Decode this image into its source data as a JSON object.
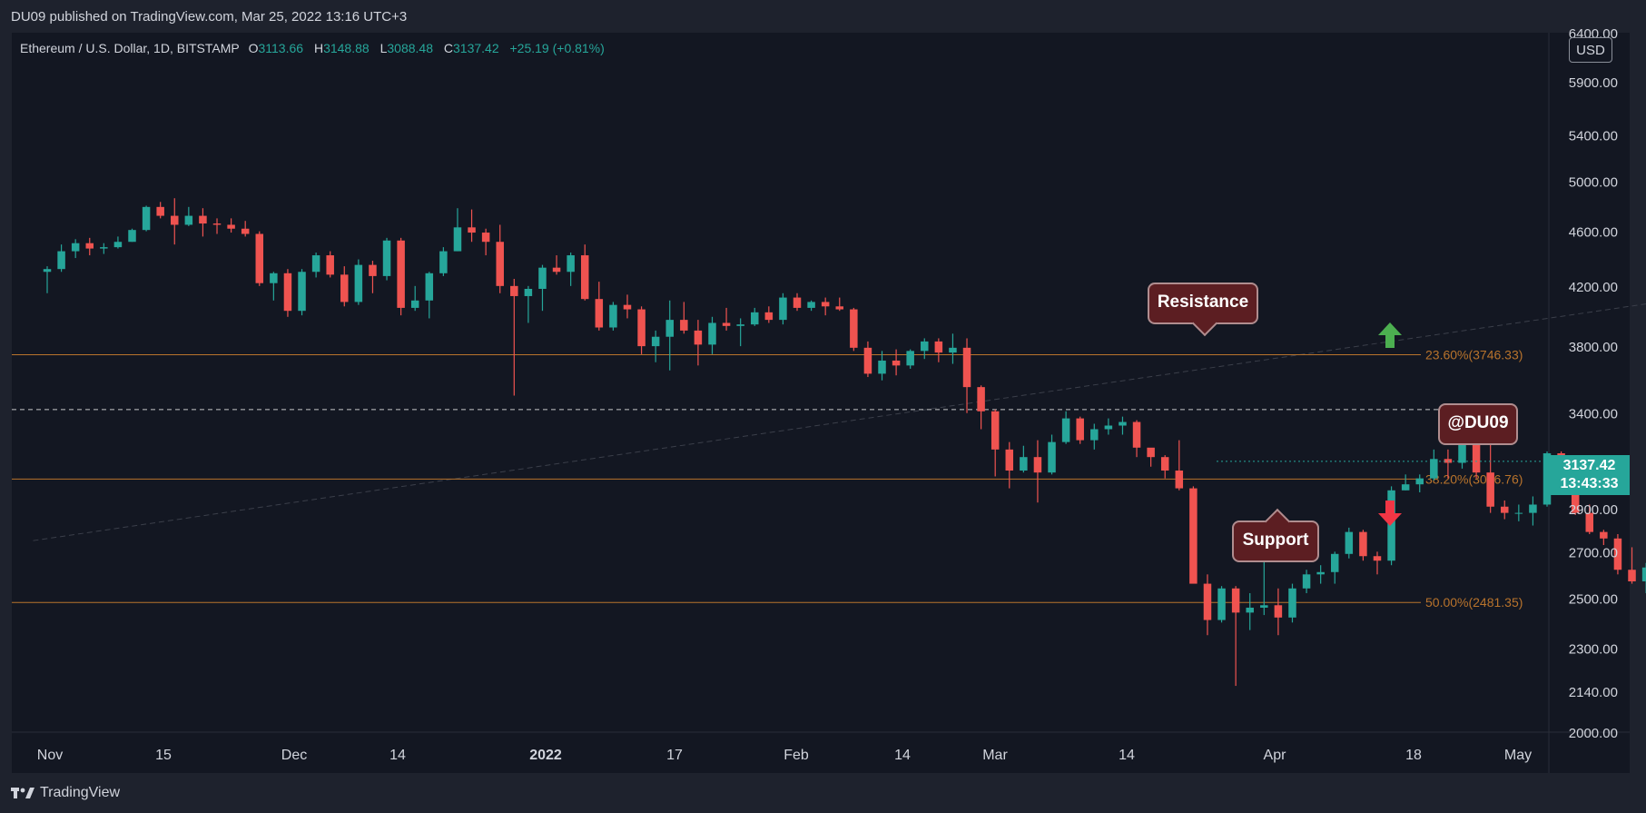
{
  "header": {
    "published": "DU09 published on TradingView.com, Mar 25, 2022 13:16 UTC+3"
  },
  "legend": {
    "symbol": "Ethereum / U.S. Dollar, 1D, BITSTAMP",
    "o_label": "O",
    "o": "3113.66",
    "h_label": "H",
    "h": "3148.88",
    "l_label": "L",
    "l": "3088.48",
    "c_label": "C",
    "c": "3137.42",
    "change": "+25.19 (+0.81%)"
  },
  "callouts": {
    "resistance": "Resistance",
    "support": "Support",
    "watermark": "@DU09"
  },
  "last_price": {
    "price": "3137.42",
    "countdown": "13:43:33"
  },
  "currency": "USD",
  "brand": "TradingView",
  "colors": {
    "up": "#26a69a",
    "down": "#ef5350",
    "fib": "#b8732c",
    "background": "#131722",
    "arrow_up": "#4caf50",
    "arrow_down": "#f23645"
  },
  "chart_data": {
    "type": "candlestick",
    "title": "Ethereum / U.S. Dollar, 1D, BITSTAMP",
    "log_scale": true,
    "ylim": [
      2000,
      6400
    ],
    "y_ticks": [
      "6400.00",
      "5900.00",
      "5400.00",
      "5000.00",
      "4600.00",
      "4200.00",
      "3800.00",
      "3400.00",
      "2900.00",
      "2700.00",
      "2500.00",
      "2300.00",
      "2140.00",
      "2000.00"
    ],
    "x_ticks": [
      "Nov",
      "15",
      "Dec",
      "14",
      "2022",
      "17",
      "Feb",
      "14",
      "Mar",
      "14",
      "Apr",
      "18",
      "May"
    ],
    "fib_levels": [
      {
        "label": "23.60%(3746.33)",
        "value": 3746.33
      },
      {
        "label": "38.20%(3046.76)",
        "value": 3046.76
      },
      {
        "label": "50.00%(2481.35)",
        "value": 2481.35
      }
    ],
    "dashed_level": 3420,
    "trendline": {
      "from": [
        "2021-10-31",
        2750
      ],
      "to": [
        "2022-04-25",
        5050
      ]
    },
    "candles": [
      [
        "2021-11-01",
        4300,
        4340,
        4150,
        4320
      ],
      [
        "2021-11-02",
        4320,
        4500,
        4300,
        4450
      ],
      [
        "2021-11-03",
        4450,
        4540,
        4400,
        4510
      ],
      [
        "2021-11-04",
        4510,
        4550,
        4420,
        4470
      ],
      [
        "2021-11-05",
        4470,
        4510,
        4430,
        4480
      ],
      [
        "2021-11-06",
        4480,
        4560,
        4470,
        4520
      ],
      [
        "2021-11-07",
        4520,
        4620,
        4520,
        4610
      ],
      [
        "2021-11-08",
        4610,
        4800,
        4600,
        4790
      ],
      [
        "2021-11-09",
        4790,
        4830,
        4700,
        4720
      ],
      [
        "2021-11-10",
        4720,
        4860,
        4500,
        4650
      ],
      [
        "2021-11-11",
        4650,
        4790,
        4640,
        4720
      ],
      [
        "2021-11-12",
        4720,
        4780,
        4560,
        4660
      ],
      [
        "2021-11-13",
        4660,
        4700,
        4580,
        4650
      ],
      [
        "2021-11-14",
        4650,
        4700,
        4590,
        4620
      ],
      [
        "2021-11-15",
        4620,
        4680,
        4560,
        4580
      ],
      [
        "2021-11-16",
        4580,
        4600,
        4200,
        4220
      ],
      [
        "2021-11-17",
        4220,
        4300,
        4100,
        4290
      ],
      [
        "2021-11-18",
        4290,
        4320,
        3990,
        4030
      ],
      [
        "2021-11-19",
        4030,
        4320,
        4000,
        4300
      ],
      [
        "2021-11-20",
        4300,
        4440,
        4260,
        4420
      ],
      [
        "2021-11-21",
        4420,
        4450,
        4260,
        4280
      ],
      [
        "2021-11-22",
        4280,
        4340,
        4060,
        4090
      ],
      [
        "2021-11-23",
        4090,
        4390,
        4070,
        4350
      ],
      [
        "2021-11-24",
        4350,
        4380,
        4150,
        4270
      ],
      [
        "2021-11-25",
        4270,
        4550,
        4240,
        4530
      ],
      [
        "2021-11-26",
        4530,
        4550,
        4000,
        4050
      ],
      [
        "2021-11-27",
        4050,
        4200,
        4030,
        4100
      ],
      [
        "2021-11-28",
        4100,
        4300,
        3980,
        4290
      ],
      [
        "2021-11-29",
        4290,
        4480,
        4270,
        4450
      ],
      [
        "2021-11-30",
        4450,
        4780,
        4450,
        4630
      ],
      [
        "2021-12-01",
        4630,
        4770,
        4520,
        4590
      ],
      [
        "2021-12-02",
        4590,
        4620,
        4420,
        4520
      ],
      [
        "2021-12-03",
        4520,
        4650,
        4150,
        4200
      ],
      [
        "2021-12-04",
        4200,
        4250,
        3500,
        4130
      ],
      [
        "2021-12-05",
        4130,
        4200,
        3950,
        4180
      ],
      [
        "2021-12-06",
        4180,
        4350,
        4030,
        4330
      ],
      [
        "2021-12-07",
        4330,
        4420,
        4280,
        4300
      ],
      [
        "2021-12-08",
        4300,
        4440,
        4200,
        4420
      ],
      [
        "2021-12-09",
        4420,
        4500,
        4100,
        4110
      ],
      [
        "2021-12-10",
        4110,
        4230,
        3900,
        3920
      ],
      [
        "2021-12-11",
        3920,
        4090,
        3900,
        4070
      ],
      [
        "2021-12-12",
        4070,
        4140,
        3980,
        4040
      ],
      [
        "2021-12-13",
        4040,
        4060,
        3750,
        3800
      ],
      [
        "2021-12-14",
        3800,
        3900,
        3700,
        3860
      ],
      [
        "2021-12-15",
        3860,
        4100,
        3650,
        3970
      ],
      [
        "2021-12-16",
        3970,
        4090,
        3880,
        3900
      ],
      [
        "2021-12-17",
        3900,
        3970,
        3680,
        3810
      ],
      [
        "2021-12-18",
        3810,
        3990,
        3750,
        3950
      ],
      [
        "2021-12-19",
        3950,
        4050,
        3900,
        3930
      ],
      [
        "2021-12-20",
        3930,
        3980,
        3800,
        3940
      ],
      [
        "2021-12-21",
        3940,
        4050,
        3930,
        4020
      ],
      [
        "2021-12-22",
        4020,
        4060,
        3950,
        3970
      ],
      [
        "2021-12-23",
        3970,
        4150,
        3940,
        4120
      ],
      [
        "2021-12-24",
        4120,
        4150,
        4030,
        4050
      ],
      [
        "2021-12-25",
        4050,
        4100,
        4030,
        4090
      ],
      [
        "2021-12-26",
        4090,
        4120,
        4000,
        4060
      ],
      [
        "2021-12-27",
        4060,
        4120,
        4030,
        4040
      ],
      [
        "2021-12-28",
        4040,
        4050,
        3770,
        3790
      ],
      [
        "2021-12-29",
        3790,
        3830,
        3610,
        3630
      ],
      [
        "2021-12-30",
        3630,
        3770,
        3590,
        3710
      ],
      [
        "2021-12-31",
        3710,
        3780,
        3620,
        3680
      ],
      [
        "2022-01-01",
        3680,
        3780,
        3660,
        3770
      ],
      [
        "2022-01-02",
        3770,
        3850,
        3720,
        3830
      ],
      [
        "2022-01-03",
        3830,
        3850,
        3700,
        3760
      ],
      [
        "2022-01-04",
        3760,
        3880,
        3690,
        3790
      ],
      [
        "2022-01-05",
        3790,
        3850,
        3400,
        3550
      ],
      [
        "2022-01-06",
        3550,
        3560,
        3310,
        3410
      ],
      [
        "2022-01-07",
        3410,
        3420,
        3060,
        3200
      ],
      [
        "2022-01-08",
        3200,
        3240,
        3000,
        3090
      ],
      [
        "2022-01-09",
        3090,
        3220,
        3080,
        3160
      ],
      [
        "2022-01-10",
        3160,
        3250,
        2930,
        3080
      ],
      [
        "2022-01-11",
        3080,
        3280,
        3070,
        3240
      ],
      [
        "2022-01-12",
        3240,
        3410,
        3230,
        3370
      ],
      [
        "2022-01-13",
        3370,
        3380,
        3230,
        3250
      ],
      [
        "2022-01-14",
        3250,
        3340,
        3200,
        3310
      ],
      [
        "2022-01-15",
        3310,
        3370,
        3280,
        3330
      ],
      [
        "2022-01-16",
        3330,
        3380,
        3280,
        3350
      ],
      [
        "2022-01-17",
        3350,
        3360,
        3160,
        3210
      ],
      [
        "2022-01-18",
        3210,
        3200,
        3110,
        3160
      ],
      [
        "2022-01-19",
        3160,
        3170,
        3050,
        3090
      ],
      [
        "2022-01-20",
        3090,
        3250,
        2990,
        3000
      ],
      [
        "2022-01-21",
        3000,
        3010,
        2580,
        2560
      ],
      [
        "2022-01-22",
        2560,
        2600,
        2350,
        2410
      ],
      [
        "2022-01-23",
        2410,
        2550,
        2400,
        2540
      ],
      [
        "2022-01-24",
        2540,
        2550,
        2160,
        2440
      ],
      [
        "2022-01-25",
        2440,
        2520,
        2370,
        2460
      ],
      [
        "2022-01-26",
        2460,
        2720,
        2430,
        2470
      ],
      [
        "2022-01-27",
        2470,
        2540,
        2350,
        2420
      ],
      [
        "2022-01-28",
        2420,
        2560,
        2400,
        2540
      ],
      [
        "2022-01-29",
        2540,
        2620,
        2520,
        2600
      ],
      [
        "2022-01-30",
        2600,
        2640,
        2560,
        2610
      ],
      [
        "2022-01-31",
        2610,
        2700,
        2560,
        2690
      ],
      [
        "2022-02-01",
        2690,
        2810,
        2670,
        2790
      ],
      [
        "2022-02-02",
        2790,
        2800,
        2660,
        2680
      ],
      [
        "2022-02-03",
        2680,
        2700,
        2600,
        2660
      ],
      [
        "2022-02-04",
        2660,
        3010,
        2640,
        2990
      ],
      [
        "2022-02-05",
        2990,
        3070,
        2990,
        3020
      ],
      [
        "2022-02-06",
        3020,
        3070,
        2980,
        3050
      ],
      [
        "2022-02-07",
        3050,
        3200,
        3040,
        3150
      ],
      [
        "2022-02-08",
        3150,
        3200,
        3050,
        3130
      ],
      [
        "2022-02-09",
        3130,
        3260,
        3100,
        3240
      ],
      [
        "2022-02-10",
        3240,
        3280,
        3050,
        3080
      ],
      [
        "2022-02-11",
        3080,
        3250,
        2880,
        2910
      ],
      [
        "2022-02-12",
        2910,
        2940,
        2850,
        2880
      ],
      [
        "2022-02-13",
        2880,
        2920,
        2840,
        2880
      ],
      [
        "2022-02-14",
        2880,
        2960,
        2820,
        2920
      ],
      [
        "2022-02-15",
        2920,
        3190,
        2910,
        3180
      ],
      [
        "2022-02-16",
        3180,
        3190,
        3060,
        3130
      ],
      [
        "2022-02-17",
        3130,
        3160,
        2870,
        2880
      ],
      [
        "2022-02-18",
        2880,
        2920,
        2780,
        2790
      ],
      [
        "2022-02-19",
        2790,
        2800,
        2730,
        2760
      ],
      [
        "2022-02-20",
        2760,
        2780,
        2600,
        2620
      ],
      [
        "2022-02-21",
        2620,
        2720,
        2560,
        2570
      ],
      [
        "2022-02-22",
        2570,
        2650,
        2520,
        2630
      ],
      [
        "2022-02-23",
        2630,
        2680,
        2540,
        2590
      ],
      [
        "2022-02-24",
        2590,
        2620,
        2300,
        2610
      ],
      [
        "2022-02-25",
        2610,
        2740,
        2590,
        2720
      ],
      [
        "2022-02-26",
        2720,
        2800,
        2690,
        2710
      ],
      [
        "2022-02-27",
        2710,
        2760,
        2610,
        2630
      ],
      [
        "2022-02-28",
        2630,
        2940,
        2620,
        2920
      ],
      [
        "2022-03-01",
        2920,
        2980,
        2880,
        2970
      ],
      [
        "2022-03-02",
        2970,
        3030,
        2920,
        2950
      ],
      [
        "2022-03-03",
        2950,
        2970,
        2800,
        2840
      ],
      [
        "2022-03-04",
        2840,
        2850,
        2600,
        2610
      ],
      [
        "2022-03-05",
        2610,
        2660,
        2580,
        2630
      ],
      [
        "2022-03-06",
        2630,
        2650,
        2540,
        2570
      ],
      [
        "2022-03-07",
        2570,
        2640,
        2490,
        2510
      ],
      [
        "2022-03-08",
        2510,
        2620,
        2500,
        2590
      ],
      [
        "2022-03-09",
        2590,
        2740,
        2580,
        2730
      ],
      [
        "2022-03-10",
        2730,
        2740,
        2550,
        2610
      ],
      [
        "2022-03-11",
        2610,
        2670,
        2540,
        2560
      ],
      [
        "2022-03-12",
        2560,
        2600,
        2550,
        2570
      ],
      [
        "2022-03-13",
        2570,
        2580,
        2520,
        2520
      ],
      [
        "2022-03-14",
        2520,
        2610,
        2520,
        2590
      ],
      [
        "2022-03-15",
        2590,
        2640,
        2520,
        2630
      ],
      [
        "2022-03-16",
        2630,
        2780,
        2620,
        2760
      ],
      [
        "2022-03-17",
        2760,
        2840,
        2760,
        2820
      ],
      [
        "2022-03-18",
        2820,
        2960,
        2800,
        2950
      ],
      [
        "2022-03-19",
        2950,
        2980,
        2900,
        2940
      ],
      [
        "2022-03-20",
        2940,
        2970,
        2850,
        2860
      ],
      [
        "2022-03-21",
        2860,
        2970,
        2820,
        2920
      ],
      [
        "2022-03-22",
        2920,
        3030,
        2920,
        3010
      ],
      [
        "2022-03-23",
        3010,
        3050,
        2970,
        3040
      ],
      [
        "2022-03-24",
        3040,
        3130,
        3020,
        3110
      ],
      [
        "2022-03-25",
        3113.66,
        3148.88,
        3088.48,
        3137.42
      ]
    ]
  }
}
